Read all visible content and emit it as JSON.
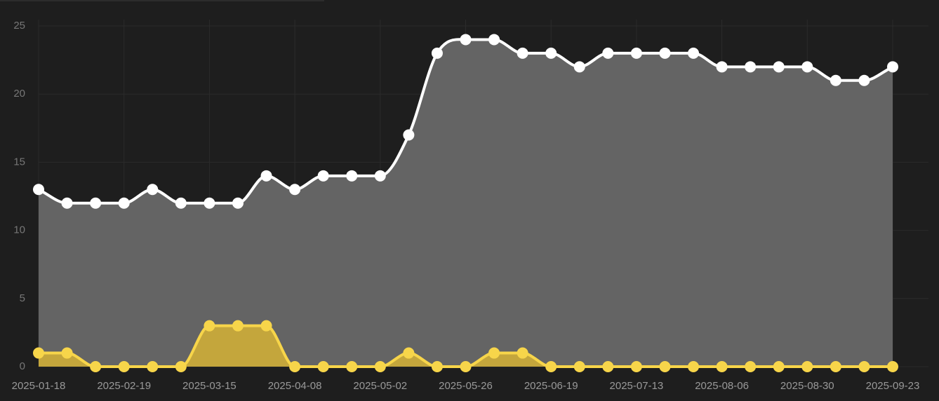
{
  "chart_data": {
    "type": "area",
    "categories": [
      "2025-01-18",
      null,
      null,
      "2025-02-19",
      null,
      null,
      "2025-03-15",
      null,
      null,
      "2025-04-08",
      null,
      null,
      "2025-05-02",
      null,
      null,
      "2025-05-26",
      null,
      null,
      "2025-06-19",
      null,
      null,
      "2025-07-13",
      null,
      null,
      "2025-08-06",
      null,
      null,
      "2025-08-30",
      null,
      null,
      "2025-09-23"
    ],
    "series": [
      {
        "color": "#ffffff",
        "fill": "#646464",
        "values": [
          13,
          12,
          12,
          12,
          13,
          12,
          12,
          12,
          14,
          13,
          14,
          14,
          14,
          17,
          23,
          24,
          24,
          23,
          23,
          22,
          23,
          23,
          23,
          23,
          22,
          22,
          22,
          22,
          21,
          21,
          22
        ]
      },
      {
        "color": "#f7d54a",
        "fill": "#c9aa3a",
        "values": [
          1,
          1,
          0,
          0,
          0,
          0,
          3,
          3,
          3,
          0,
          0,
          0,
          0,
          1,
          0,
          0,
          1,
          1,
          0,
          0,
          0,
          0,
          0,
          0,
          0,
          0,
          0,
          0,
          0,
          0,
          0
        ]
      }
    ],
    "ylim": [
      0,
      25
    ],
    "yticks": [
      0,
      5,
      10,
      15,
      20,
      25
    ],
    "grid": true
  }
}
